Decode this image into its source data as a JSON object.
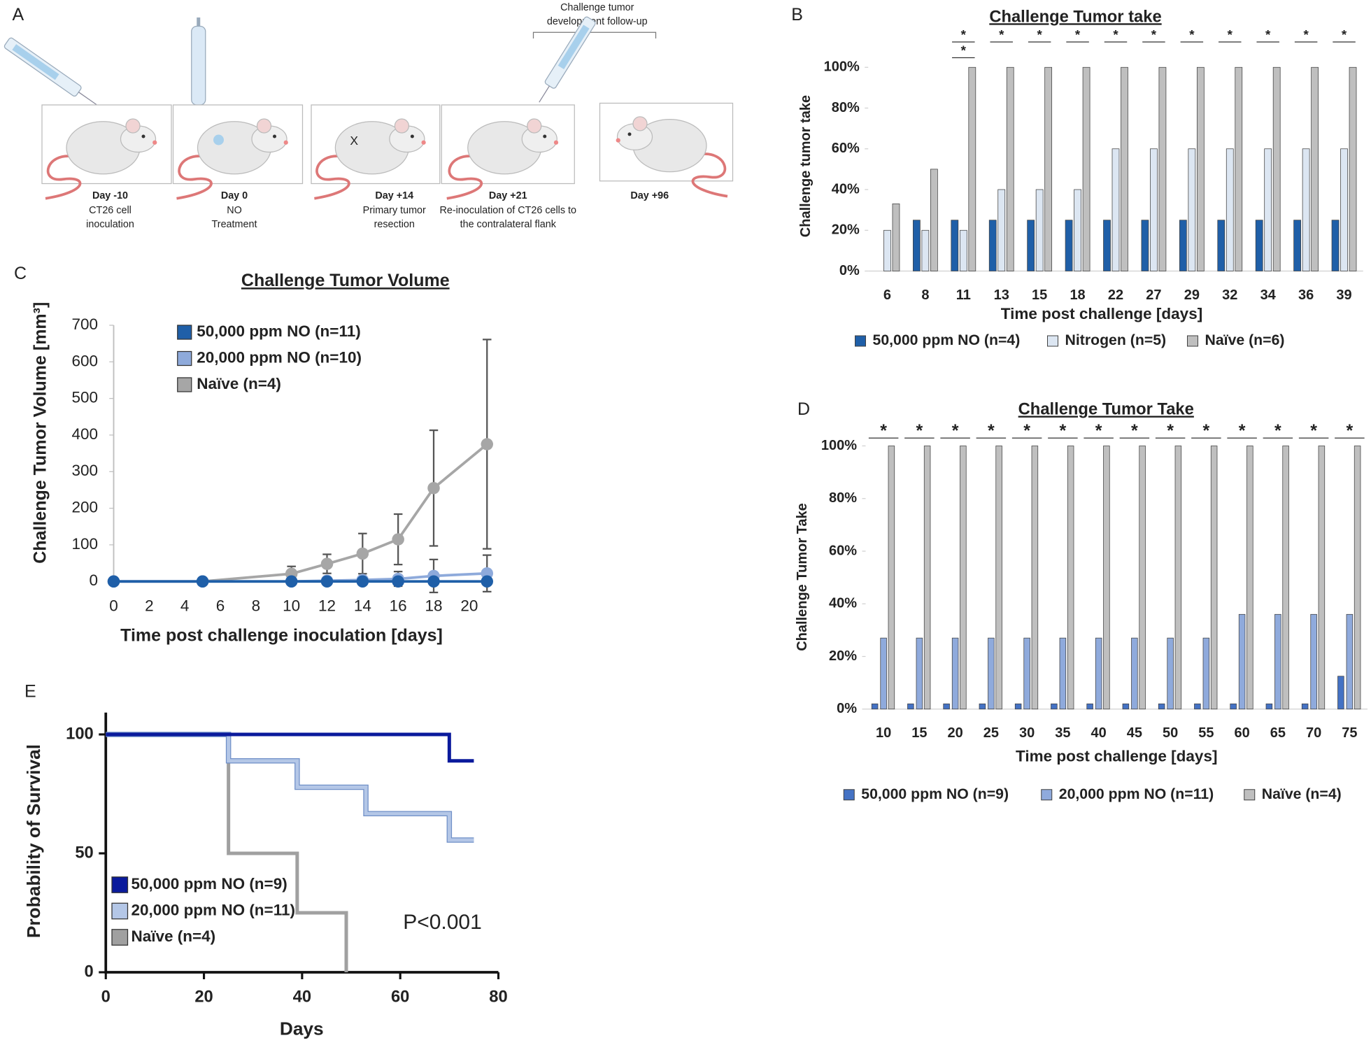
{
  "diagram": {
    "label": "A",
    "note": [
      "Challenge tumor",
      "development follow-up"
    ],
    "mark": "X",
    "steps": [
      {
        "day": "Day -10",
        "desc": [
          "CT26 cell",
          "inoculation"
        ]
      },
      {
        "day": "Day 0",
        "desc": [
          "NO",
          "Treatment"
        ]
      },
      {
        "day": "Day +14",
        "desc": [
          "Primary tumor",
          "resection"
        ]
      },
      {
        "day": "Day +21",
        "desc": [
          "Re-inoculation of CT26 cells to",
          "the contralateral flank"
        ]
      },
      {
        "day": "Day +96"
      }
    ]
  },
  "chart_data": [
    {
      "panel": "B",
      "type": "bar",
      "title": "Challenge Tumor take",
      "y_label": "Challenge tumor take",
      "x_label": "Time post challenge [days]",
      "categories": [
        "6",
        "8",
        "11",
        "13",
        "15",
        "18",
        "22",
        "27",
        "29",
        "32",
        "34",
        "36",
        "39"
      ],
      "series": [
        {
          "name": "50,000 ppm NO (n=4)",
          "color": "#1f5fa8",
          "values": [
            0,
            25,
            25,
            25,
            25,
            25,
            25,
            25,
            25,
            25,
            25,
            25,
            25
          ]
        },
        {
          "name": "Nitrogen (n=5)",
          "color": "#dce6f2",
          "values": [
            20,
            20,
            20,
            40,
            40,
            40,
            60,
            60,
            60,
            60,
            60,
            60,
            60
          ]
        },
        {
          "name": "Naïve (n=6)",
          "color": "#bfbfbf",
          "values": [
            33,
            50,
            100,
            100,
            100,
            100,
            100,
            100,
            100,
            100,
            100,
            100,
            100
          ]
        }
      ],
      "ylim": [
        0,
        100
      ],
      "yticks": [
        {
          "value": 0,
          "label": "0%"
        },
        {
          "value": 20,
          "label": "20%"
        },
        {
          "value": 40,
          "label": "40%"
        },
        {
          "value": 60,
          "label": "60%"
        },
        {
          "value": 80,
          "label": "80%"
        },
        {
          "value": 100,
          "label": "100%"
        }
      ],
      "significance": [
        null,
        null,
        [
          "*",
          "*"
        ],
        [
          "*"
        ],
        [
          "*"
        ],
        [
          "*"
        ],
        [
          "*"
        ],
        [
          "*"
        ],
        [
          "*"
        ],
        [
          "*"
        ],
        [
          "*"
        ],
        [
          "*"
        ],
        [
          "*"
        ]
      ]
    },
    {
      "panel": "C",
      "type": "line",
      "title": "Challenge Tumor Volume",
      "y_label": "Challenge Tumor Volume [mm³]",
      "x_label": "Time post challenge inoculation  [days]",
      "x": [
        0,
        5,
        10,
        12,
        14,
        16,
        18,
        21
      ],
      "series": [
        {
          "name": "50,000 ppm NO (n=11)",
          "color": "#1f5fa8",
          "values": [
            0,
            0,
            0,
            0,
            0,
            0,
            0,
            0
          ],
          "errors": [
            0,
            0,
            0,
            0,
            0,
            0,
            0,
            0
          ]
        },
        {
          "name": "20,000 ppm NO (n=10)",
          "color": "#8eaadb",
          "values": [
            0,
            0,
            0,
            2,
            4,
            7,
            15,
            22
          ],
          "errors": [
            0,
            0,
            0,
            3,
            5,
            20,
            45,
            50
          ]
        },
        {
          "name": "Naïve (n=4)",
          "color": "#a6a6a6",
          "values": [
            0,
            0,
            21,
            48,
            76,
            115,
            255,
            375
          ],
          "errors": [
            0,
            0,
            20,
            26,
            55,
            69,
            158,
            286
          ]
        }
      ],
      "xlim": [
        0,
        21
      ],
      "xticks": [
        0,
        2,
        4,
        6,
        8,
        10,
        12,
        14,
        16,
        18,
        20
      ],
      "ylim": [
        0,
        700
      ],
      "yticks": [
        0,
        100,
        200,
        300,
        400,
        500,
        600,
        700
      ]
    },
    {
      "panel": "D",
      "type": "bar",
      "title": "Challenge Tumor Take",
      "y_label": "Challenge Tumor Take",
      "x_label": "Time post challenge [days]",
      "categories": [
        "10",
        "15",
        "20",
        "25",
        "30",
        "35",
        "40",
        "45",
        "50",
        "55",
        "60",
        "65",
        "70",
        "75"
      ],
      "series": [
        {
          "name": "50,000 ppm NO (n=9)",
          "color": "#4472c4",
          "values": [
            2,
            2,
            2,
            2,
            2,
            2,
            2,
            2,
            2,
            2,
            2,
            2,
            2,
            12.5
          ]
        },
        {
          "name": "20,000 ppm NO (n=11)",
          "color": "#8faadc",
          "values": [
            27,
            27,
            27,
            27,
            27,
            27,
            27,
            27,
            27,
            27,
            36,
            36,
            36,
            36
          ]
        },
        {
          "name": "Naïve (n=4)",
          "color": "#bfbfbf",
          "values": [
            100,
            100,
            100,
            100,
            100,
            100,
            100,
            100,
            100,
            100,
            100,
            100,
            100,
            100
          ]
        }
      ],
      "ylim": [
        0,
        100
      ],
      "yticks": [
        {
          "value": 0,
          "label": "0%"
        },
        {
          "value": 20,
          "label": "20%"
        },
        {
          "value": 40,
          "label": "40%"
        },
        {
          "value": 60,
          "label": "60%"
        },
        {
          "value": 80,
          "label": "80%"
        },
        {
          "value": 100,
          "label": "100%"
        }
      ],
      "significance": [
        [
          "*"
        ],
        [
          "*"
        ],
        [
          "*"
        ],
        [
          "*"
        ],
        [
          "*"
        ],
        [
          "*"
        ],
        [
          "*"
        ],
        [
          "*"
        ],
        [
          "*"
        ],
        [
          "*"
        ],
        [
          "*"
        ],
        [
          "*"
        ],
        [
          "*"
        ],
        [
          "*"
        ]
      ]
    },
    {
      "panel": "E",
      "type": "step",
      "y_label": "Probability of Survival",
      "x_label": "Days",
      "annotation": "P<0.001",
      "series": [
        {
          "name": "50,000 ppm NO (n=9)",
          "color": "#0a1a9c",
          "x": [
            0,
            70,
            75
          ],
          "values": [
            100,
            88.9,
            88.9
          ]
        },
        {
          "name": "20,000 ppm NO (n=11)",
          "color": "#b4c7e7",
          "x": [
            0,
            25,
            39,
            53,
            70,
            75
          ],
          "values": [
            100,
            88.9,
            77.8,
            66.7,
            55.6,
            55.6
          ]
        },
        {
          "name": "Naïve (n=4)",
          "color": "#a0a0a0",
          "x": [
            0,
            25,
            39,
            49
          ],
          "values": [
            100,
            50,
            25,
            0
          ]
        }
      ],
      "xlim": [
        0,
        80
      ],
      "xticks": [
        0,
        20,
        40,
        60,
        80
      ],
      "ylim": [
        0,
        100
      ],
      "yticks": [
        0,
        50,
        100
      ]
    }
  ]
}
